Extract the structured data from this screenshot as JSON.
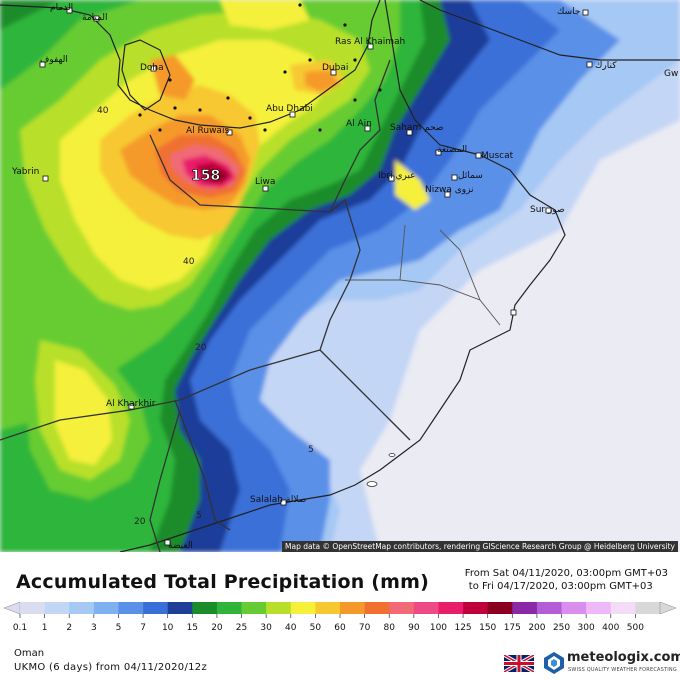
{
  "title": "Accumulated Total Precipitation (mm)",
  "period": {
    "from": "From Sat 04/11/2020, 03:00pm GMT+03",
    "to": "to Fri 04/17/2020, 03:00pm GMT+03"
  },
  "region": "Oman",
  "model": "UKMO (6 days) from 04/11/2020/12z",
  "credit": "Map data © OpenStreetMap contributors, rendering GIScience Research Group @ Heidelberg University",
  "brand": {
    "name": "meteologix.com",
    "tagline": "SWISS QUALITY WEATHER FORECASTING"
  },
  "peak_value": "158",
  "contour_labels": [
    "40",
    "40",
    "20",
    "5",
    "5",
    "20"
  ],
  "legend": {
    "ticks": [
      "0.1",
      "1",
      "2",
      "3",
      "5",
      "7",
      "10",
      "15",
      "20",
      "25",
      "30",
      "40",
      "50",
      "60",
      "70",
      "80",
      "90",
      "100",
      "125",
      "150",
      "175",
      "200",
      "250",
      "300",
      "400",
      "500"
    ],
    "colors": [
      "#dcdcf0",
      "#c4d6f5",
      "#a6c8f5",
      "#7fb0f0",
      "#5a90e8",
      "#3a6fd8",
      "#1f3e99",
      "#1a8c2a",
      "#2fb53a",
      "#66cc33",
      "#b8e02a",
      "#f5f03a",
      "#f7c830",
      "#f59a2a",
      "#f07030",
      "#f06a78",
      "#ee4a86",
      "#e81e6a",
      "#c0003a",
      "#8a0020",
      "#8a2aa8",
      "#b45cd8",
      "#d98ef0",
      "#efb8f8",
      "#f4dcf8",
      "#d8d8d8"
    ]
  },
  "cities": [
    {
      "name": "الدمام"
    },
    {
      "name": "المنامة"
    },
    {
      "name": "الهفوف"
    },
    {
      "name": "Doha"
    },
    {
      "name": "Dubai"
    },
    {
      "name": "Ras Al Khaimah"
    },
    {
      "name": "Abu Dhabi"
    },
    {
      "name": "Al Ruwais"
    },
    {
      "name": "Al Ain"
    },
    {
      "name": "Saham صحم"
    },
    {
      "name": "المصنعة"
    },
    {
      "name": "Muscat"
    },
    {
      "name": "Ibri عبري"
    },
    {
      "name": "سمائل"
    },
    {
      "name": "Nizwa نزوى"
    },
    {
      "name": "Liwa"
    },
    {
      "name": "Yabrin"
    },
    {
      "name": "Sur صور"
    },
    {
      "name": "Al Kharkhir"
    },
    {
      "name": "Salalah صلالة"
    },
    {
      "name": "الغيضة"
    },
    {
      "name": "جاسك"
    },
    {
      "name": "كنارك"
    },
    {
      "name": "Gw"
    }
  ]
}
